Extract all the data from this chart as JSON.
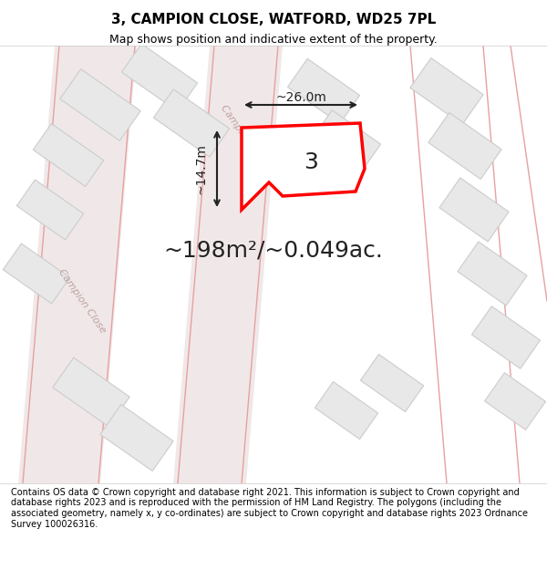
{
  "title": "3, CAMPION CLOSE, WATFORD, WD25 7PL",
  "subtitle": "Map shows position and indicative extent of the property.",
  "area_text": "~198m²/~0.049ac.",
  "label_number": "3",
  "dim_width": "~26.0m",
  "dim_height": "~14.7m",
  "footer": "Contains OS data © Crown copyright and database right 2021. This information is subject to Crown copyright and database rights 2023 and is reproduced with the permission of HM Land Registry. The polygons (including the associated geometry, namely x, y co-ordinates) are subject to Crown copyright and database rights 2023 Ordnance Survey 100026316.",
  "bg_color": "#ffffff",
  "map_bg": "#f5f5f5",
  "road_color": "#e8d5d5",
  "building_color": "#e8e8e8",
  "building_edge": "#cccccc",
  "plot_color": "#ffffff",
  "plot_edge": "#ff0000",
  "plot_lw": 2.5,
  "street_text_color": "#c0a0a0",
  "annotation_color": "#222222",
  "title_fontsize": 11,
  "subtitle_fontsize": 9,
  "area_fontsize": 18,
  "label_fontsize": 18,
  "footer_fontsize": 7
}
